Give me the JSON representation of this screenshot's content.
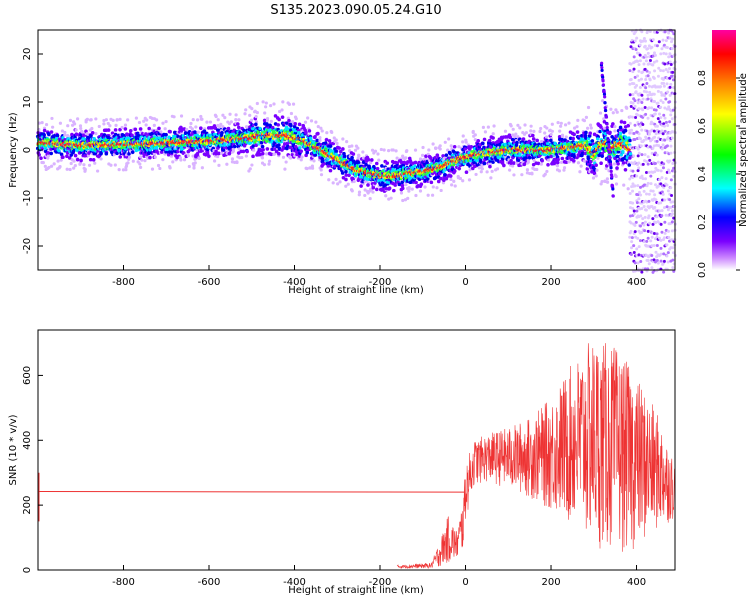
{
  "title": "S135.2023.090.05.24.G10",
  "chart_data": [
    {
      "type": "heatmap",
      "xlabel": "Height of straight line (km)",
      "ylabel": "Frequency (Hz)",
      "xlim": [
        -1000,
        490
      ],
      "ylim": [
        -25,
        25
      ],
      "xticks": [
        -800,
        -600,
        -400,
        -200,
        0,
        200,
        400
      ],
      "yticks": [
        -20,
        -10,
        0,
        10,
        20
      ],
      "colorbar": {
        "label": "Normalized spectral amplitude",
        "range": [
          0.0,
          1.0
        ],
        "ticks": [
          "0.0",
          "0.2",
          "0.4",
          "0.6",
          "0.8"
        ],
        "colors": [
          "#ffffff",
          "#cc88ff",
          "#7a00ff",
          "#0000ff",
          "#00ffff",
          "#00ff00",
          "#ffff00",
          "#ff8000",
          "#ff0000",
          "#ff00a0"
        ]
      },
      "ridge": {
        "x": [
          -1000,
          -900,
          -800,
          -700,
          -600,
          -520,
          -460,
          -420,
          -380,
          -340,
          -300,
          -260,
          -220,
          -180,
          -140,
          -100,
          -60,
          -20,
          20,
          60,
          100,
          150,
          200,
          240,
          280,
          300,
          320,
          340,
          360,
          380,
          400
        ],
        "y": [
          1.5,
          1.0,
          1.2,
          1.5,
          1.8,
          2.5,
          3.0,
          3.0,
          2.0,
          0.0,
          -2.0,
          -4.0,
          -5.0,
          -5.5,
          -5.0,
          -4.5,
          -3.5,
          -2.0,
          -1.0,
          -0.5,
          0.0,
          0.0,
          0.0,
          0.5,
          1.0,
          -1.0,
          2.0,
          0.0,
          1.5,
          0.5,
          -1.5
        ]
      },
      "noise_region_x": [
        385,
        490
      ]
    },
    {
      "type": "line",
      "xlabel": "Height of straight line (km)",
      "ylabel": "SNR (10 * v/v)",
      "xlim": [
        -1000,
        490
      ],
      "ylim": [
        0,
        740
      ],
      "xticks": [
        -800,
        -600,
        -400,
        -200,
        0,
        200,
        400
      ],
      "yticks": [
        0,
        200,
        400,
        600
      ],
      "color": "#ee3333",
      "flat_segment": {
        "x": [
          -1000,
          0
        ],
        "y": [
          242,
          240
        ]
      },
      "envelope": {
        "x": [
          -160,
          -120,
          -80,
          -60,
          -40,
          -20,
          -5,
          0,
          20,
          50,
          100,
          150,
          200,
          250,
          300,
          350,
          400,
          450,
          490
        ],
        "lower": [
          5,
          5,
          5,
          10,
          20,
          30,
          60,
          150,
          260,
          270,
          250,
          220,
          180,
          130,
          70,
          50,
          60,
          120,
          160
        ],
        "upper": [
          15,
          18,
          22,
          90,
          170,
          120,
          230,
          330,
          400,
          420,
          440,
          470,
          530,
          640,
          720,
          690,
          600,
          480,
          330
        ]
      }
    }
  ]
}
